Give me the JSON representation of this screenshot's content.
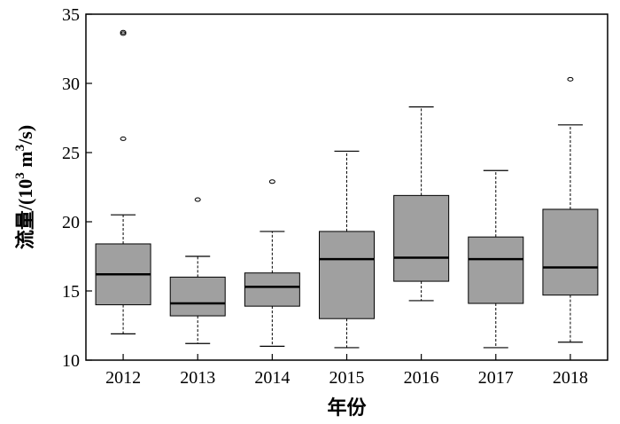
{
  "chart_data": {
    "type": "box",
    "xlabel": "年份",
    "ylabel": {
      "cn": "流量",
      "prefix": "/(10",
      "exp1": "3",
      "unit": " m",
      "exp2": "3",
      "suffix": "/s)"
    },
    "ylim": [
      10,
      35
    ],
    "yticks": [
      10,
      15,
      20,
      25,
      30,
      35
    ],
    "grid": false,
    "legend": "none",
    "box_color": "#a0a0a0",
    "categories": [
      "2012",
      "2013",
      "2014",
      "2015",
      "2016",
      "2017",
      "2018"
    ],
    "boxes": [
      {
        "year": "2012",
        "whisker_low": 11.9,
        "q1": 14.0,
        "median": 16.2,
        "q3": 18.4,
        "whisker_high": 20.5,
        "outliers": [
          26.0,
          33.6,
          33.7
        ]
      },
      {
        "year": "2013",
        "whisker_low": 11.2,
        "q1": 13.2,
        "median": 14.1,
        "q3": 16.0,
        "whisker_high": 17.5,
        "outliers": [
          21.6
        ]
      },
      {
        "year": "2014",
        "whisker_low": 11.0,
        "q1": 13.9,
        "median": 15.3,
        "q3": 16.3,
        "whisker_high": 19.3,
        "outliers": [
          22.9
        ]
      },
      {
        "year": "2015",
        "whisker_low": 10.9,
        "q1": 13.0,
        "median": 17.3,
        "q3": 19.3,
        "whisker_high": 25.1,
        "outliers": []
      },
      {
        "year": "2016",
        "whisker_low": 14.3,
        "q1": 15.7,
        "median": 17.4,
        "q3": 21.9,
        "whisker_high": 28.3,
        "outliers": []
      },
      {
        "year": "2017",
        "whisker_low": 10.9,
        "q1": 14.1,
        "median": 17.3,
        "q3": 18.9,
        "whisker_high": 23.7,
        "outliers": []
      },
      {
        "year": "2018",
        "whisker_low": 11.3,
        "q1": 14.7,
        "median": 16.7,
        "q3": 20.9,
        "whisker_high": 27.0,
        "outliers": [
          30.3
        ]
      }
    ]
  }
}
